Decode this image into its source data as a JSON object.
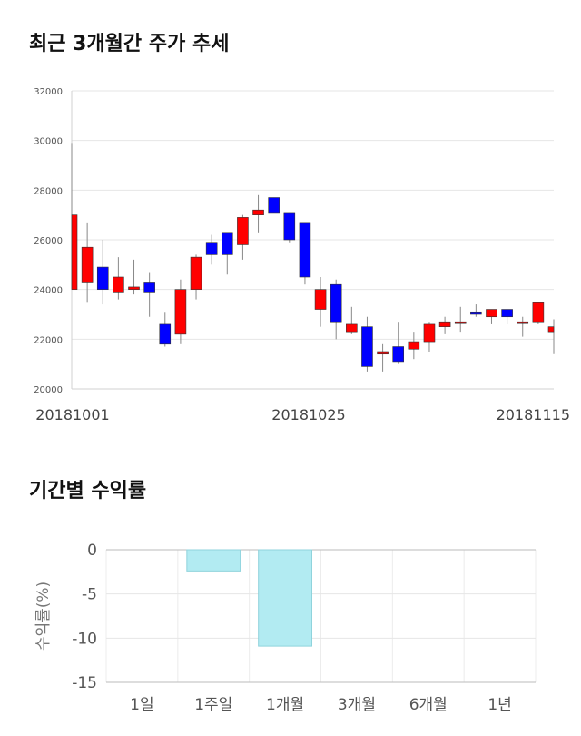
{
  "sections": {
    "price_trend_title": "최근 3개월간 주가 추세",
    "returns_title": "기간별 수익률"
  },
  "colors": {
    "up": "#ff0000",
    "down": "#0000ff",
    "wick": "#888888",
    "return_bar": "#b2ebf2",
    "return_bar_stroke": "#8fd3dc"
  },
  "chart_data": [
    {
      "type": "candlestick",
      "title": "최근 3개월간 주가 추세",
      "ylim": [
        20000,
        32000
      ],
      "y_ticks": [
        20000,
        22000,
        24000,
        26000,
        28000,
        30000,
        32000
      ],
      "x_tick_labels": [
        "20181001",
        "20181025",
        "20181115"
      ],
      "grid": true,
      "candles": [
        {
          "o": 24000,
          "h": 29900,
          "l": 24000,
          "c": 27000
        },
        {
          "o": 24300,
          "h": 26700,
          "l": 23500,
          "c": 25700
        },
        {
          "o": 24900,
          "h": 26000,
          "l": 23400,
          "c": 24000
        },
        {
          "o": 23900,
          "h": 25300,
          "l": 23600,
          "c": 24500
        },
        {
          "o": 24000,
          "h": 25200,
          "l": 23800,
          "c": 24100
        },
        {
          "o": 24300,
          "h": 24700,
          "l": 22900,
          "c": 23900
        },
        {
          "o": 22600,
          "h": 23100,
          "l": 21700,
          "c": 21800
        },
        {
          "o": 22200,
          "h": 24400,
          "l": 21800,
          "c": 24000
        },
        {
          "o": 24000,
          "h": 25400,
          "l": 23600,
          "c": 25300
        },
        {
          "o": 25900,
          "h": 26200,
          "l": 25000,
          "c": 25400
        },
        {
          "o": 26300,
          "h": 26300,
          "l": 24600,
          "c": 25400
        },
        {
          "o": 25800,
          "h": 27000,
          "l": 25200,
          "c": 26900
        },
        {
          "o": 27000,
          "h": 27800,
          "l": 26300,
          "c": 27200
        },
        {
          "o": 27700,
          "h": 27700,
          "l": 27100,
          "c": 27100
        },
        {
          "o": 27100,
          "h": 27100,
          "l": 25900,
          "c": 26000
        },
        {
          "o": 26700,
          "h": 26700,
          "l": 24200,
          "c": 24500
        },
        {
          "o": 23200,
          "h": 24500,
          "l": 22500,
          "c": 24000
        },
        {
          "o": 24200,
          "h": 24400,
          "l": 22000,
          "c": 22700
        },
        {
          "o": 22300,
          "h": 23300,
          "l": 22200,
          "c": 22600
        },
        {
          "o": 22500,
          "h": 22900,
          "l": 20700,
          "c": 20900
        },
        {
          "o": 21400,
          "h": 21800,
          "l": 20700,
          "c": 21500
        },
        {
          "o": 21700,
          "h": 22700,
          "l": 21000,
          "c": 21100
        },
        {
          "o": 21600,
          "h": 22300,
          "l": 21200,
          "c": 21900
        },
        {
          "o": 21900,
          "h": 22700,
          "l": 21500,
          "c": 22600
        },
        {
          "o": 22500,
          "h": 22900,
          "l": 22200,
          "c": 22700
        },
        {
          "o": 22700,
          "h": 23300,
          "l": 22300,
          "c": 22700
        },
        {
          "o": 23100,
          "h": 23400,
          "l": 22900,
          "c": 23000
        },
        {
          "o": 22900,
          "h": 23200,
          "l": 22600,
          "c": 23200
        },
        {
          "o": 23200,
          "h": 23200,
          "l": 22600,
          "c": 22900
        },
        {
          "o": 22700,
          "h": 22900,
          "l": 22100,
          "c": 22700
        },
        {
          "o": 22700,
          "h": 23500,
          "l": 22600,
          "c": 23500
        },
        {
          "o": 22300,
          "h": 22800,
          "l": 21400,
          "c": 22500
        }
      ]
    },
    {
      "type": "bar",
      "title": "기간별 수익률",
      "categories": [
        "1일",
        "1주일",
        "1개월",
        "3개월",
        "6개월",
        "1년"
      ],
      "values": [
        0,
        -2.4,
        -10.9,
        0,
        0,
        0
      ],
      "ylabel": "수익률(%)",
      "ylim": [
        -15,
        0
      ],
      "y_ticks": [
        0,
        -5,
        -10,
        -15
      ],
      "grid": true
    }
  ]
}
